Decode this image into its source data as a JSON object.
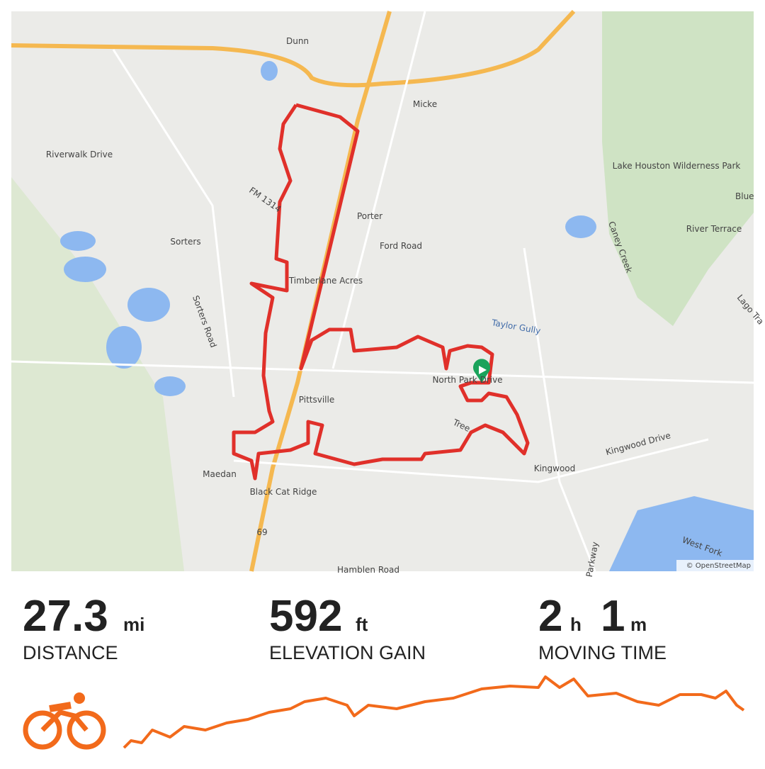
{
  "map": {
    "labels": [
      "Dunn",
      "Micke",
      "Riverwalk Drive",
      "FM 1314",
      "Porter",
      "Ford Road",
      "Sorters",
      "Timberlane Acres",
      "Sorters Road",
      "Lake Houston Wilderness Park",
      "Blue",
      "River Terrace",
      "Caney Creek",
      "Lago Tra",
      "Taylor Gully",
      "North Park Drive",
      "Pittsville",
      "Tree",
      "Kingwood Drive",
      "Kingwood",
      "Maedan",
      "Black Cat Ridge",
      "69",
      "West Fork",
      "Parkway",
      "Hamblen Road"
    ],
    "attribution": "© OpenStreetMap"
  },
  "stats": [
    {
      "value": 27.3,
      "unit": "mi",
      "label": "DISTANCE"
    },
    {
      "value": 592,
      "unit": "ft",
      "label": "ELEVATION GAIN"
    },
    {
      "hours": 2,
      "hours_unit": "h",
      "minutes": 1,
      "minutes_unit": "m",
      "label": "MOVING TIME"
    }
  ]
}
